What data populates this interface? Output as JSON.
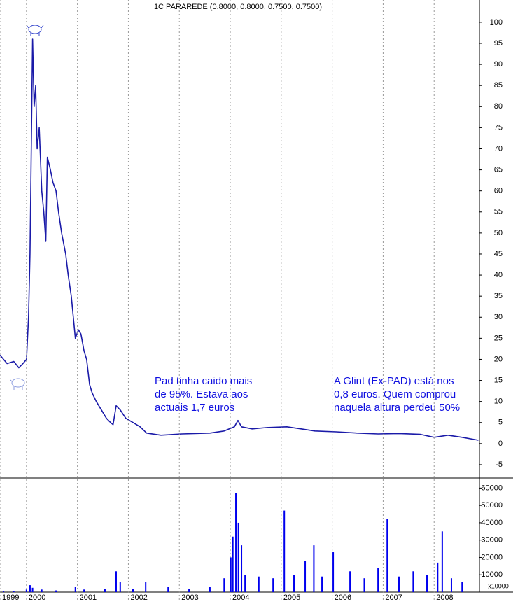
{
  "chart_data": [
    {
      "type": "line",
      "title": "1C PARAREDE (0.8000, 0.8000, 0.7500, 0.7500)",
      "x": [
        1999.48,
        1999.62,
        1999.75,
        1999.85,
        1999.93,
        2000.0,
        2000.04,
        2000.07,
        2000.1,
        2000.12,
        2000.15,
        2000.18,
        2000.21,
        2000.25,
        2000.3,
        2000.34,
        2000.38,
        2000.41,
        2000.47,
        2000.52,
        2000.58,
        2000.63,
        2000.69,
        2000.77,
        2000.82,
        2000.88,
        2000.92,
        2000.96,
        2001.02,
        2001.07,
        2001.13,
        2001.18,
        2001.24,
        2001.29,
        2001.37,
        2001.47,
        2001.57,
        2001.65,
        2001.7,
        2001.76,
        2001.84,
        2001.95,
        2002.09,
        2002.23,
        2002.36,
        2002.64,
        2003.05,
        2003.6,
        2003.88,
        2004.08,
        2004.15,
        2004.22,
        2004.43,
        2004.7,
        2005.11,
        2005.39,
        2005.66,
        2006.08,
        2006.49,
        2006.9,
        2007.31,
        2007.73,
        2008.0,
        2008.27,
        2008.55,
        2008.87
      ],
      "series": [
        {
          "name": "PARAREDE",
          "color": "#1a1aa8",
          "values": [
            21,
            19,
            19.5,
            18,
            19,
            20,
            30,
            45,
            75,
            96,
            80,
            85,
            70,
            75,
            60,
            55,
            48,
            68,
            65,
            62,
            60,
            55,
            50,
            45,
            40,
            35,
            30,
            25,
            27,
            26,
            22,
            20,
            14,
            12,
            10,
            8,
            6,
            5,
            4.5,
            9,
            8,
            6,
            5,
            4,
            2.5,
            2,
            2.3,
            2.5,
            3,
            4,
            5.5,
            4,
            3.5,
            3.8,
            4,
            3.5,
            3,
            2.8,
            2.5,
            2.3,
            2.4,
            2.2,
            1.5,
            2,
            1.5,
            0.8
          ]
        }
      ],
      "xlim": [
        1999.48,
        2008.89
      ],
      "ylim": [
        -8,
        105.3
      ],
      "yticks": [
        100,
        95,
        90,
        85,
        80,
        75,
        70,
        65,
        60,
        55,
        50,
        45,
        40,
        35,
        30,
        25,
        20,
        15,
        10,
        5,
        0,
        -5
      ],
      "annotations": [
        {
          "lines": [
            "Pad tinha caido mais",
            "de 95%. Estava aos",
            "actuais 1,7 euros"
          ],
          "color": "#1010e0"
        },
        {
          "lines": [
            "A Glint (Ex-PAD) está nos",
            "0,8 euros. Quem comprou",
            "naquela altura perdeu 50%"
          ],
          "color": "#1010e0"
        }
      ]
    },
    {
      "type": "bar",
      "x": [
        1999.55,
        1999.75,
        2000.0,
        2000.07,
        2000.12,
        2000.3,
        2000.58,
        2000.96,
        2001.13,
        2001.54,
        2001.76,
        2001.84,
        2002.09,
        2002.34,
        2002.78,
        2003.19,
        2003.6,
        2003.88,
        2004.01,
        2004.05,
        2004.11,
        2004.16,
        2004.22,
        2004.29,
        2004.56,
        2004.84,
        2005.06,
        2005.25,
        2005.47,
        2005.64,
        2005.8,
        2006.02,
        2006.35,
        2006.63,
        2006.9,
        2007.08,
        2007.31,
        2007.59,
        2007.86,
        2008.07,
        2008.16,
        2008.34,
        2008.55
      ],
      "values": [
        500,
        800,
        1500,
        4000,
        2500,
        1500,
        1000,
        3000,
        1500,
        2000,
        12000,
        6000,
        2000,
        6000,
        3000,
        2000,
        3000,
        8000,
        20000,
        32000,
        57000,
        40000,
        27000,
        10000,
        9000,
        8000,
        47000,
        10000,
        18000,
        27000,
        9000,
        23000,
        12000,
        8000,
        14000,
        42000,
        9000,
        12000,
        10000,
        17000,
        35000,
        8000,
        6000
      ],
      "color": "#0000ee",
      "xlim": [
        1999.48,
        2008.89
      ],
      "ylim": [
        0,
        65000
      ],
      "yticks": [
        60000,
        50000,
        40000,
        30000,
        20000,
        10000
      ],
      "unit_label": "x10000",
      "xticks": [
        {
          "value": 1999.48,
          "label": "1999"
        },
        2000,
        2001,
        2002,
        2003,
        2004,
        2005,
        2006,
        2007,
        2008
      ]
    }
  ]
}
